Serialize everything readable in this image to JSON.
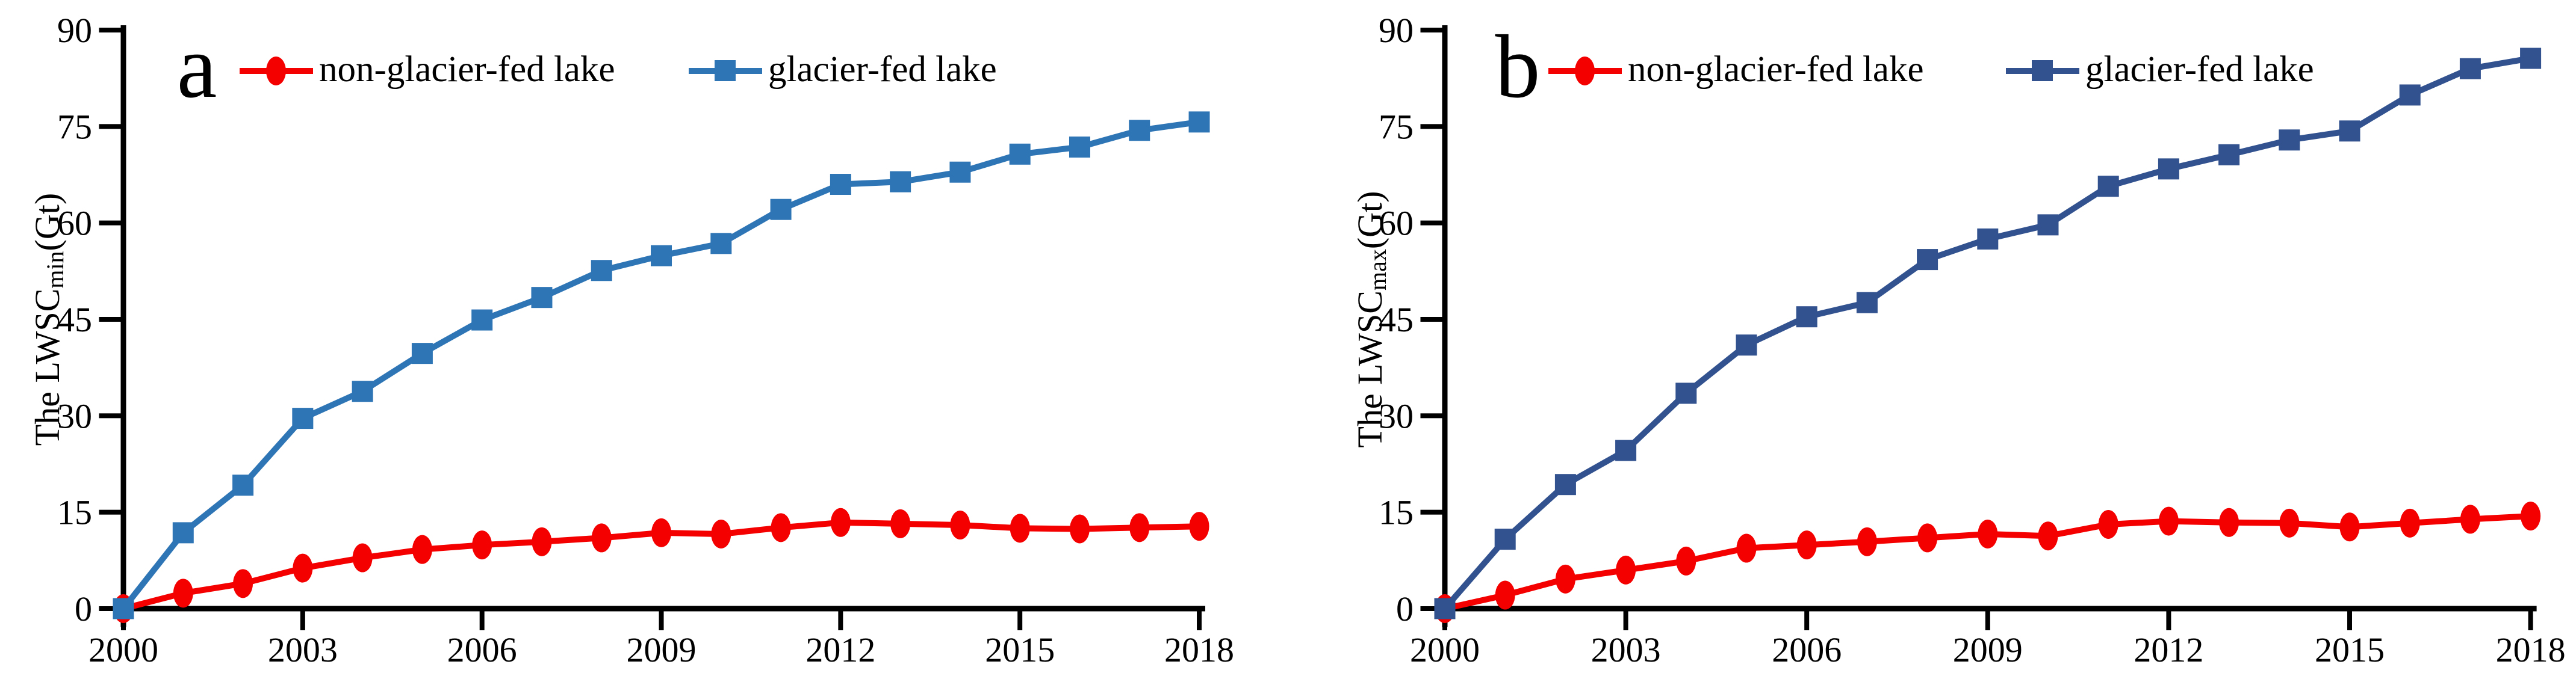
{
  "figure": {
    "background": "#ffffff",
    "axis_color": "#000000",
    "panels": [
      {
        "panel_label": "a",
        "y_axis_title": {
          "prefix": "The LWSC",
          "subscript": "min",
          "suffix": " (Gt)"
        },
        "legend": [
          {
            "label": "non-glacier-fed lake"
          },
          {
            "label": "glacier-fed lake"
          }
        ]
      },
      {
        "panel_label": "b",
        "y_axis_title": {
          "prefix": "The LWSC",
          "subscript": "max",
          "suffix": " (Gt)"
        },
        "legend": [
          {
            "label": "non-glacier-fed lake"
          },
          {
            "label": "glacier-fed lake"
          }
        ]
      }
    ]
  },
  "chart_data": [
    {
      "type": "line",
      "panel_label": "a",
      "title": "",
      "xlabel": "",
      "ylabel": "The LWSC_min (Gt)",
      "xlim": [
        2000,
        2018
      ],
      "ylim": [
        0,
        90
      ],
      "x_ticks": [
        2000,
        2003,
        2006,
        2009,
        2012,
        2015,
        2018
      ],
      "y_ticks": [
        0,
        15,
        30,
        45,
        60,
        75,
        90
      ],
      "grid": false,
      "legend_position": "top",
      "x": [
        2000,
        2001,
        2002,
        2003,
        2004,
        2005,
        2006,
        2007,
        2008,
        2009,
        2010,
        2011,
        2012,
        2013,
        2014,
        2015,
        2016,
        2017,
        2018
      ],
      "series": [
        {
          "name": "non-glacier-fed lake",
          "color": "#F40000",
          "marker": "ellipse",
          "values": [
            0,
            2.4,
            3.9,
            6.3,
            7.9,
            9.2,
            9.9,
            10.4,
            11.0,
            11.8,
            11.6,
            12.6,
            13.4,
            13.2,
            13.0,
            12.5,
            12.4,
            12.6,
            12.8
          ]
        },
        {
          "name": "glacier-fed lake",
          "color": "#2E75B6",
          "marker": "square",
          "values": [
            0,
            11.8,
            19.2,
            29.6,
            33.8,
            39.7,
            44.9,
            48.4,
            52.6,
            54.9,
            56.8,
            62.1,
            66.0,
            66.4,
            67.9,
            70.7,
            71.8,
            74.4,
            75.7
          ]
        }
      ]
    },
    {
      "type": "line",
      "panel_label": "b",
      "title": "",
      "xlabel": "",
      "ylabel": "The LWSC_max (Gt)",
      "xlim": [
        2000,
        2018
      ],
      "ylim": [
        0,
        90
      ],
      "x_ticks": [
        2000,
        2003,
        2006,
        2009,
        2012,
        2015,
        2018
      ],
      "y_ticks": [
        0,
        15,
        30,
        45,
        60,
        75,
        90
      ],
      "grid": false,
      "legend_position": "top",
      "x": [
        2000,
        2001,
        2002,
        2003,
        2004,
        2005,
        2006,
        2007,
        2008,
        2009,
        2010,
        2011,
        2012,
        2013,
        2014,
        2015,
        2016,
        2017,
        2018
      ],
      "series": [
        {
          "name": "non-glacier-fed lake",
          "color": "#F40000",
          "marker": "ellipse",
          "values": [
            0,
            2.1,
            4.6,
            6.0,
            7.4,
            9.4,
            9.9,
            10.4,
            11.0,
            11.6,
            11.3,
            13.1,
            13.6,
            13.4,
            13.3,
            12.7,
            13.3,
            13.9,
            14.4
          ]
        },
        {
          "name": "glacier-fed lake",
          "color": "#31518F",
          "marker": "square",
          "values": [
            0,
            10.8,
            19.3,
            24.6,
            33.5,
            41.0,
            45.4,
            47.6,
            54.3,
            57.5,
            59.7,
            65.7,
            68.4,
            70.6,
            72.9,
            74.3,
            79.9,
            84.0,
            85.6
          ]
        }
      ]
    }
  ]
}
